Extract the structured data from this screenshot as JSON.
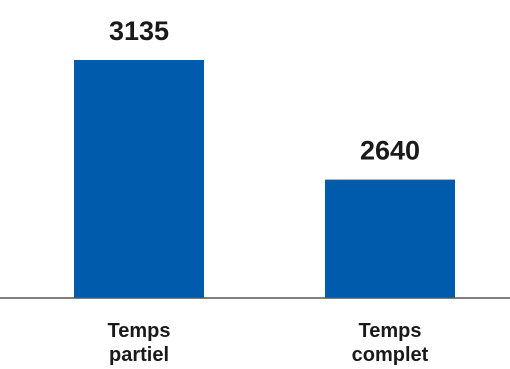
{
  "chart_data": {
    "type": "bar",
    "categories": [
      [
        "Temps",
        "partiel"
      ],
      [
        "Temps",
        "complet"
      ]
    ],
    "values": [
      3135,
      2640
    ],
    "ylim": [
      2150,
      3135
    ],
    "bar_color": "#005bac",
    "baseline_color": "#555555",
    "grid": false,
    "legend": "none"
  }
}
